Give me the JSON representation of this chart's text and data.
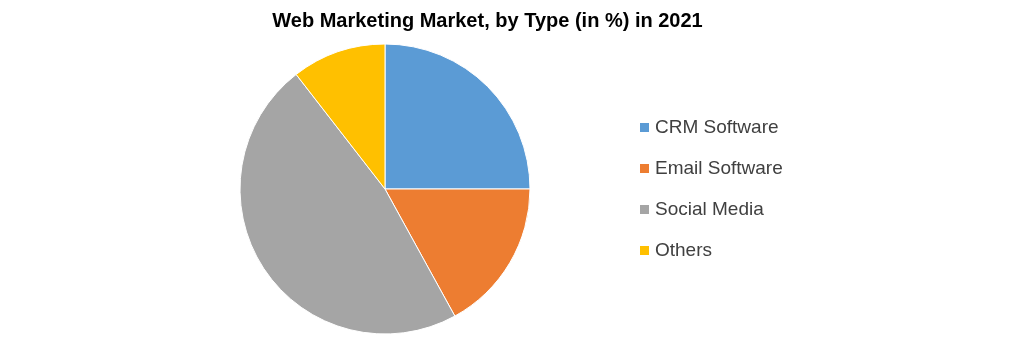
{
  "chart_data": {
    "type": "pie",
    "title": "Web Marketing Market, by Type (in %) in 2021",
    "categories": [
      "CRM Software",
      "Email Software",
      "Social Media",
      "Others"
    ],
    "values": [
      25,
      17,
      47.5,
      10.5
    ],
    "colors": [
      "#5b9bd5",
      "#ed7d31",
      "#a5a5a5",
      "#ffc000"
    ],
    "legend": "right"
  }
}
